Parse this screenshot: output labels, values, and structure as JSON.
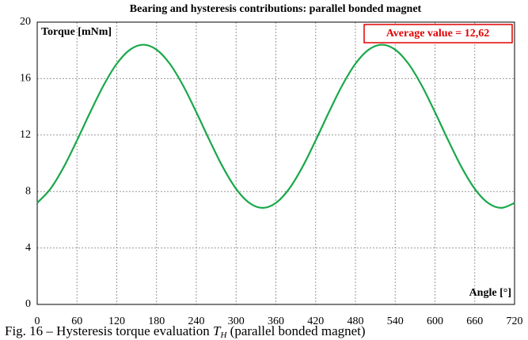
{
  "chart_data": {
    "type": "line",
    "title": "Bearing and hysteresis contributions: parallel bonded magnet",
    "y_label": "Torque [mNm]",
    "x_label": "Angle [°]",
    "annotation": "Average value  = 12,62",
    "x": [
      0,
      20,
      40,
      60,
      80,
      100,
      120,
      140,
      160,
      180,
      200,
      220,
      240,
      260,
      280,
      300,
      320,
      340,
      360,
      380,
      400,
      420,
      440,
      460,
      480,
      500,
      520,
      540,
      560,
      580,
      600,
      620,
      640,
      660,
      680,
      700,
      720
    ],
    "series": [
      {
        "name": "Torque",
        "color": "#1aa84a",
        "values": [
          7.19,
          8.19,
          9.73,
          11.62,
          13.62,
          15.51,
          17.05,
          18.05,
          18.4,
          18.05,
          17.05,
          15.51,
          13.62,
          11.62,
          9.73,
          8.19,
          7.19,
          6.84,
          7.19,
          8.19,
          9.73,
          11.62,
          13.62,
          15.51,
          17.05,
          18.05,
          18.4,
          18.05,
          17.05,
          15.51,
          13.62,
          11.62,
          9.73,
          8.19,
          7.19,
          6.84,
          7.19
        ]
      }
    ],
    "xlim": [
      0,
      720
    ],
    "xticks": [
      0,
      60,
      120,
      180,
      240,
      300,
      360,
      420,
      480,
      540,
      600,
      660,
      720
    ],
    "ylim": [
      0,
      20
    ],
    "yticks": [
      0,
      4,
      8,
      12,
      16,
      20
    ],
    "grid": true,
    "annotation_color": "#e00000"
  },
  "caption": {
    "prefix": "Fig. 16 – Hysteresis torque evaluation ",
    "symbol": "T",
    "subscript": "H",
    "suffix": " (parallel bonded magnet)"
  }
}
